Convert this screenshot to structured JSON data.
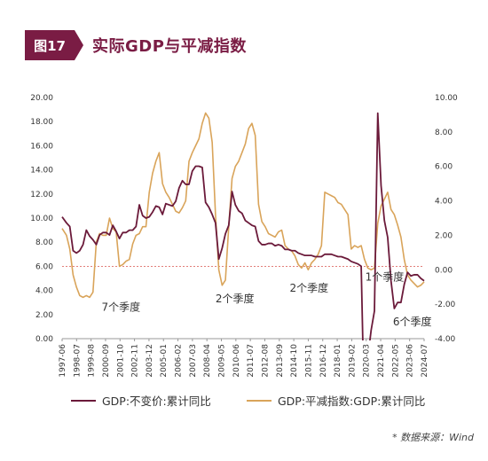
{
  "figure": {
    "tag": "图17",
    "title": "实际GDP与平减指数",
    "source": "* 数据来源：Wind"
  },
  "colors": {
    "brand": "#7a1c44",
    "series_gdp": "#6b1a3a",
    "series_deflator": "#d9a45a",
    "ref_line": "#d9534f",
    "axis": "#999999",
    "text": "#333333"
  },
  "chart_data": {
    "type": "line",
    "title": "实际GDP与平减指数",
    "x_ticks": [
      "1997-06",
      "1998-07",
      "1999-08",
      "2000-09",
      "2001-10",
      "2002-11",
      "2003-12",
      "2005-01",
      "2006-02",
      "2007-03",
      "2008-04",
      "2009-05",
      "2010-06",
      "2011-07",
      "2012-08",
      "2013-09",
      "2014-10",
      "2015-11",
      "2016-12",
      "2018-01",
      "2019-02",
      "2020-03",
      "2021-04",
      "2022-05",
      "2023-06",
      "2024-07"
    ],
    "y_left": {
      "lim": [
        0,
        20
      ],
      "ticks": [
        "0.00",
        "2.00",
        "4.00",
        "6.00",
        "8.00",
        "10.00",
        "12.00",
        "14.00",
        "16.00",
        "18.00",
        "20.00"
      ]
    },
    "y_right": {
      "lim": [
        -4,
        10
      ],
      "ticks": [
        "-4.00",
        "-2.00",
        "0.00",
        "2.00",
        "4.00",
        "6.00",
        "8.00",
        "10.00"
      ]
    },
    "ref_line_left": 6.0,
    "ref_line_label": "6.00",
    "series": [
      {
        "name": "GDP:不变价:累计同比",
        "axis": "left",
        "points": [
          [
            1997.42,
            10.1
          ],
          [
            1997.75,
            9.6
          ],
          [
            1998.0,
            9.3
          ],
          [
            1998.25,
            7.3
          ],
          [
            1998.5,
            7.1
          ],
          [
            1998.75,
            7.3
          ],
          [
            1999.0,
            7.8
          ],
          [
            1999.25,
            9.0
          ],
          [
            1999.5,
            8.5
          ],
          [
            1999.75,
            8.2
          ],
          [
            2000.0,
            7.8
          ],
          [
            2000.25,
            8.6
          ],
          [
            2000.5,
            8.8
          ],
          [
            2000.75,
            8.8
          ],
          [
            2001.0,
            8.6
          ],
          [
            2001.25,
            9.4
          ],
          [
            2001.5,
            8.9
          ],
          [
            2001.75,
            8.3
          ],
          [
            2002.0,
            8.8
          ],
          [
            2002.25,
            8.8
          ],
          [
            2002.5,
            9.0
          ],
          [
            2002.75,
            9.0
          ],
          [
            2003.0,
            9.3
          ],
          [
            2003.25,
            11.1
          ],
          [
            2003.5,
            10.2
          ],
          [
            2003.75,
            10.0
          ],
          [
            2004.0,
            10.1
          ],
          [
            2004.25,
            10.5
          ],
          [
            2004.5,
            11.0
          ],
          [
            2004.75,
            10.9
          ],
          [
            2005.0,
            10.3
          ],
          [
            2005.25,
            11.2
          ],
          [
            2005.5,
            11.1
          ],
          [
            2005.75,
            11.0
          ],
          [
            2006.0,
            11.4
          ],
          [
            2006.25,
            12.5
          ],
          [
            2006.5,
            13.1
          ],
          [
            2006.75,
            12.8
          ],
          [
            2007.0,
            12.8
          ],
          [
            2007.25,
            13.9
          ],
          [
            2007.5,
            14.3
          ],
          [
            2007.75,
            14.3
          ],
          [
            2008.0,
            14.2
          ],
          [
            2008.25,
            11.3
          ],
          [
            2008.5,
            10.9
          ],
          [
            2008.75,
            10.3
          ],
          [
            2009.0,
            9.6
          ],
          [
            2009.25,
            6.6
          ],
          [
            2009.5,
            7.5
          ],
          [
            2009.75,
            8.7
          ],
          [
            2010.0,
            9.4
          ],
          [
            2010.25,
            12.2
          ],
          [
            2010.5,
            11.1
          ],
          [
            2010.75,
            10.6
          ],
          [
            2011.0,
            10.4
          ],
          [
            2011.25,
            9.8
          ],
          [
            2011.5,
            9.6
          ],
          [
            2011.75,
            9.4
          ],
          [
            2012.0,
            9.3
          ],
          [
            2012.25,
            8.1
          ],
          [
            2012.5,
            7.8
          ],
          [
            2012.75,
            7.8
          ],
          [
            2013.0,
            7.9
          ],
          [
            2013.25,
            7.9
          ],
          [
            2013.5,
            7.7
          ],
          [
            2013.75,
            7.8
          ],
          [
            2014.0,
            7.7
          ],
          [
            2014.25,
            7.4
          ],
          [
            2014.5,
            7.4
          ],
          [
            2014.75,
            7.3
          ],
          [
            2015.0,
            7.3
          ],
          [
            2015.25,
            7.1
          ],
          [
            2015.5,
            7.0
          ],
          [
            2015.75,
            6.9
          ],
          [
            2016.0,
            6.9
          ],
          [
            2016.25,
            6.9
          ],
          [
            2016.5,
            6.8
          ],
          [
            2016.75,
            6.8
          ],
          [
            2017.0,
            6.8
          ],
          [
            2017.25,
            7.0
          ],
          [
            2017.5,
            7.0
          ],
          [
            2017.75,
            7.0
          ],
          [
            2018.0,
            6.9
          ],
          [
            2018.25,
            6.8
          ],
          [
            2018.5,
            6.8
          ],
          [
            2018.75,
            6.7
          ],
          [
            2019.0,
            6.6
          ],
          [
            2019.25,
            6.4
          ],
          [
            2019.5,
            6.3
          ],
          [
            2019.75,
            6.2
          ],
          [
            2020.0,
            6.0
          ],
          [
            2020.25,
            -6.8
          ],
          [
            2020.5,
            -1.6
          ],
          [
            2020.75,
            0.7
          ],
          [
            2021.0,
            2.3
          ],
          [
            2021.25,
            18.7
          ],
          [
            2021.5,
            12.7
          ],
          [
            2021.75,
            9.8
          ],
          [
            2022.0,
            8.4
          ],
          [
            2022.25,
            4.8
          ],
          [
            2022.5,
            2.5
          ],
          [
            2022.75,
            3.0
          ],
          [
            2023.0,
            3.0
          ],
          [
            2023.25,
            4.5
          ],
          [
            2023.5,
            5.5
          ],
          [
            2023.75,
            5.2
          ],
          [
            2024.0,
            5.3
          ],
          [
            2024.25,
            5.3
          ],
          [
            2024.5,
            5.0
          ],
          [
            2024.75,
            4.8
          ]
        ]
      },
      {
        "name": "GDP:平减指数:GDP:累计同比",
        "axis": "right",
        "points": [
          [
            1997.42,
            2.4
          ],
          [
            1997.75,
            2.0
          ],
          [
            1998.0,
            1.2
          ],
          [
            1998.25,
            -0.3
          ],
          [
            1998.5,
            -1.0
          ],
          [
            1998.75,
            -1.5
          ],
          [
            1999.0,
            -1.6
          ],
          [
            1999.25,
            -1.5
          ],
          [
            1999.5,
            -1.6
          ],
          [
            1999.75,
            -1.3
          ],
          [
            2000.0,
            1.6
          ],
          [
            2000.25,
            2.1
          ],
          [
            2000.5,
            2.0
          ],
          [
            2000.75,
            2.0
          ],
          [
            2001.0,
            3.0
          ],
          [
            2001.25,
            2.4
          ],
          [
            2001.5,
            2.2
          ],
          [
            2001.75,
            0.2
          ],
          [
            2002.0,
            0.3
          ],
          [
            2002.25,
            0.5
          ],
          [
            2002.5,
            0.6
          ],
          [
            2002.75,
            1.5
          ],
          [
            2003.0,
            2.0
          ],
          [
            2003.25,
            2.1
          ],
          [
            2003.5,
            2.5
          ],
          [
            2003.75,
            2.5
          ],
          [
            2004.0,
            4.5
          ],
          [
            2004.25,
            5.6
          ],
          [
            2004.5,
            6.3
          ],
          [
            2004.75,
            6.8
          ],
          [
            2005.0,
            5.0
          ],
          [
            2005.25,
            4.5
          ],
          [
            2005.5,
            4.2
          ],
          [
            2005.75,
            3.8
          ],
          [
            2006.0,
            3.4
          ],
          [
            2006.25,
            3.3
          ],
          [
            2006.5,
            3.6
          ],
          [
            2006.75,
            4.0
          ],
          [
            2007.0,
            6.3
          ],
          [
            2007.25,
            6.8
          ],
          [
            2007.5,
            7.2
          ],
          [
            2007.75,
            7.6
          ],
          [
            2008.0,
            8.5
          ],
          [
            2008.25,
            9.1
          ],
          [
            2008.5,
            8.8
          ],
          [
            2008.75,
            7.4
          ],
          [
            2009.0,
            3.2
          ],
          [
            2009.25,
            0.0
          ],
          [
            2009.5,
            -0.9
          ],
          [
            2009.75,
            -0.6
          ],
          [
            2010.0,
            2.5
          ],
          [
            2010.25,
            5.3
          ],
          [
            2010.5,
            6.0
          ],
          [
            2010.75,
            6.3
          ],
          [
            2011.0,
            6.8
          ],
          [
            2011.25,
            7.3
          ],
          [
            2011.5,
            8.2
          ],
          [
            2011.75,
            8.5
          ],
          [
            2012.0,
            7.8
          ],
          [
            2012.25,
            3.8
          ],
          [
            2012.5,
            2.8
          ],
          [
            2012.75,
            2.5
          ],
          [
            2013.0,
            2.1
          ],
          [
            2013.25,
            2.0
          ],
          [
            2013.5,
            1.9
          ],
          [
            2013.75,
            2.2
          ],
          [
            2014.0,
            2.3
          ],
          [
            2014.25,
            1.4
          ],
          [
            2014.5,
            1.2
          ],
          [
            2014.75,
            1.1
          ],
          [
            2015.0,
            0.8
          ],
          [
            2015.25,
            0.3
          ],
          [
            2015.5,
            0.1
          ],
          [
            2015.75,
            0.4
          ],
          [
            2016.0,
            0.0
          ],
          [
            2016.25,
            0.4
          ],
          [
            2016.5,
            0.6
          ],
          [
            2016.75,
            0.9
          ],
          [
            2017.0,
            1.4
          ],
          [
            2017.25,
            4.5
          ],
          [
            2017.5,
            4.4
          ],
          [
            2017.75,
            4.3
          ],
          [
            2018.0,
            4.2
          ],
          [
            2018.25,
            3.9
          ],
          [
            2018.5,
            3.8
          ],
          [
            2018.75,
            3.5
          ],
          [
            2019.0,
            3.2
          ],
          [
            2019.25,
            1.2
          ],
          [
            2019.5,
            1.4
          ],
          [
            2019.75,
            1.3
          ],
          [
            2020.0,
            1.4
          ],
          [
            2020.25,
            0.6
          ],
          [
            2020.5,
            0.1
          ],
          [
            2020.75,
            0.0
          ],
          [
            2021.0,
            0.1
          ],
          [
            2021.25,
            2.7
          ],
          [
            2021.5,
            3.7
          ],
          [
            2021.75,
            4.1
          ],
          [
            2022.0,
            4.5
          ],
          [
            2022.25,
            3.5
          ],
          [
            2022.5,
            3.2
          ],
          [
            2022.75,
            2.6
          ],
          [
            2023.0,
            1.9
          ],
          [
            2023.25,
            0.6
          ],
          [
            2023.5,
            -0.3
          ],
          [
            2023.75,
            -0.6
          ],
          [
            2024.0,
            -0.8
          ],
          [
            2024.25,
            -1.0
          ],
          [
            2024.5,
            -0.9
          ],
          [
            2024.75,
            -0.7
          ]
        ]
      }
    ],
    "annotations": [
      {
        "text": "7个季度",
        "x": 2000.4,
        "y_left": 2.3
      },
      {
        "text": "2个季度",
        "x": 2009.0,
        "y_left": 3.0
      },
      {
        "text": "2个季度",
        "x": 2014.6,
        "y_left": 3.9
      },
      {
        "text": "1个季度",
        "x": 2020.3,
        "y_left": 4.8
      },
      {
        "text": "6个季度",
        "x": 2022.4,
        "y_left": 1.1
      }
    ],
    "grid": false,
    "legend_position": "bottom"
  },
  "legend": {
    "gdp_label": "GDP:不变价:累计同比",
    "deflator_label": "GDP:平减指数:GDP:累计同比"
  }
}
